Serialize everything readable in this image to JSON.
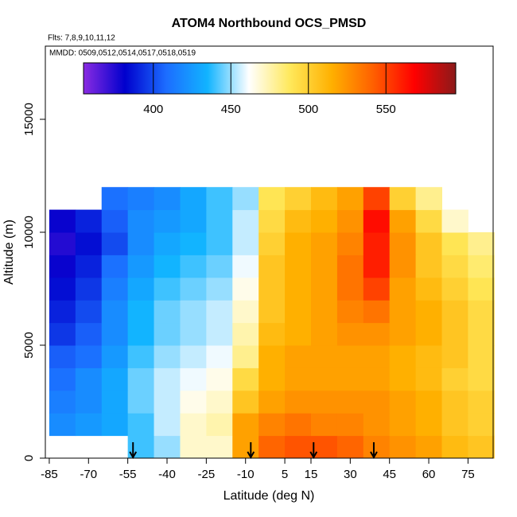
{
  "chart_data": {
    "type": "heatmap",
    "title": "ATOM4 Northbound OCS_PMSD",
    "subtitle": "Flts: 7,8,9,10,11,12",
    "annotation": "MMDD: 0509,0512,0514,0517,0518,0519",
    "x_label": "Latitude (deg N)",
    "y_label": "Altitude (m)",
    "xlim": [
      -86.5,
      84.6
    ],
    "ylim": [
      0,
      18240
    ],
    "xticks": [
      -85,
      -70,
      -55,
      -40,
      -25,
      -10,
      5,
      15,
      30,
      45,
      60,
      75
    ],
    "yticks": [
      0,
      5000,
      10000,
      15000
    ],
    "x_edges": [
      -85,
      -75,
      -65,
      -55,
      -45,
      -35,
      -25,
      -15,
      -5,
      5,
      15,
      25,
      35,
      45,
      55,
      65,
      75,
      85
    ],
    "y_edges": [
      0,
      1000,
      2000,
      3000,
      4000,
      5000,
      6000,
      7000,
      8000,
      9000,
      10000,
      11000,
      12000
    ],
    "z": [
      [
        null,
        null,
        null,
        440,
        450,
        470,
        470,
        520,
        540,
        545,
        545,
        540,
        530,
        525,
        520,
        510,
        505
      ],
      [
        420,
        425,
        430,
        440,
        455,
        470,
        475,
        520,
        530,
        535,
        530,
        530,
        525,
        520,
        515,
        505,
        500
      ],
      [
        415,
        420,
        430,
        445,
        455,
        465,
        470,
        505,
        520,
        525,
        525,
        525,
        525,
        520,
        515,
        505,
        500
      ],
      [
        410,
        420,
        430,
        445,
        455,
        460,
        465,
        495,
        515,
        520,
        520,
        520,
        520,
        515,
        510,
        500,
        495
      ],
      [
        405,
        410,
        425,
        440,
        450,
        455,
        460,
        480,
        515,
        520,
        520,
        520,
        520,
        515,
        510,
        505,
        495
      ],
      [
        395,
        405,
        420,
        435,
        445,
        450,
        455,
        475,
        510,
        515,
        520,
        525,
        525,
        520,
        515,
        505,
        495
      ],
      [
        390,
        400,
        420,
        435,
        445,
        450,
        455,
        470,
        505,
        515,
        520,
        530,
        535,
        520,
        515,
        505,
        495
      ],
      [
        385,
        395,
        415,
        430,
        440,
        445,
        450,
        465,
        505,
        515,
        520,
        535,
        550,
        520,
        510,
        500,
        490
      ],
      [
        380,
        390,
        410,
        425,
        435,
        440,
        445,
        460,
        505,
        515,
        520,
        535,
        560,
        525,
        505,
        495,
        485
      ],
      [
        375,
        385,
        400,
        420,
        430,
        435,
        440,
        455,
        500,
        515,
        520,
        530,
        560,
        525,
        505,
        490,
        480
      ],
      [
        380,
        390,
        405,
        420,
        425,
        430,
        440,
        455,
        495,
        510,
        515,
        525,
        565,
        520,
        495,
        470,
        null
      ],
      [
        null,
        null,
        410,
        415,
        420,
        430,
        440,
        450,
        490,
        500,
        510,
        520,
        550,
        500,
        480,
        null,
        null
      ]
    ],
    "clim": [
      355,
      595
    ],
    "cticks": [
      400,
      450,
      500,
      550
    ],
    "colors": [
      "#8a2be2",
      "#0000cd",
      "#1c6dff",
      "#12b4ff",
      "#ffffff",
      "#ffe85a",
      "#ffb000",
      "#ff6000",
      "#ff0000",
      "#8b1a1a"
    ],
    "flight_arrows": [
      -53,
      -8,
      16,
      39
    ]
  }
}
